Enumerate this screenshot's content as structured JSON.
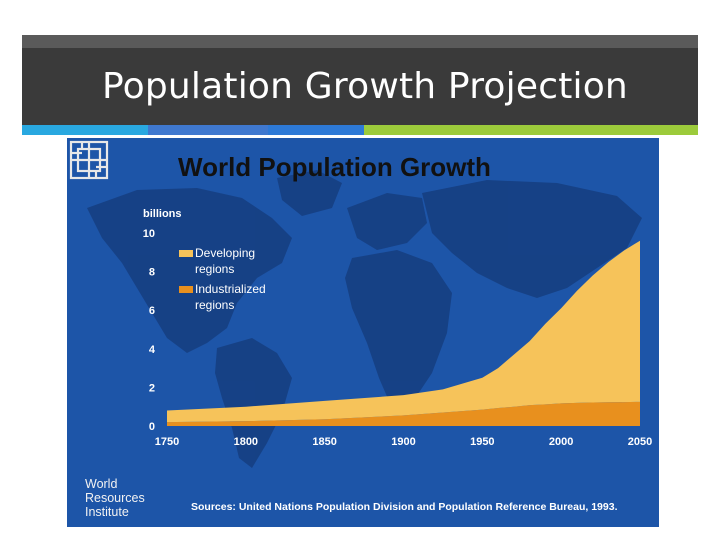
{
  "slide": {
    "title": "Population Growth Projection",
    "accent_colors": [
      "#29a8e0",
      "#3f78cf",
      "#2d79d6",
      "#9ccb3b"
    ]
  },
  "chart_data": {
    "type": "area",
    "title": "World Population Growth",
    "ylabel": "billions",
    "xlabel": "",
    "ylim": [
      0,
      10
    ],
    "yticks": [
      0,
      2,
      4,
      6,
      8,
      10
    ],
    "xlim": [
      1750,
      2050
    ],
    "xticks": [
      1750,
      1800,
      1850,
      1900,
      1950,
      2000,
      2050
    ],
    "stacked": true,
    "legend_position": "top-left",
    "x": [
      1750,
      1800,
      1850,
      1900,
      1925,
      1950,
      1960,
      1970,
      1980,
      1990,
      2000,
      2010,
      2020,
      2030,
      2040,
      2050
    ],
    "series": [
      {
        "name": "Industrialized regions",
        "color": "#e8901e",
        "values": [
          0.2,
          0.25,
          0.35,
          0.55,
          0.7,
          0.85,
          0.93,
          1.0,
          1.08,
          1.12,
          1.17,
          1.2,
          1.22,
          1.23,
          1.24,
          1.25
        ]
      },
      {
        "name": "Developing regions",
        "color": "#f6c35a",
        "values": [
          0.6,
          0.75,
          0.95,
          1.05,
          1.2,
          1.65,
          2.07,
          2.7,
          3.32,
          4.18,
          4.93,
          5.8,
          6.58,
          7.27,
          7.86,
          8.35
        ]
      }
    ],
    "legend": [
      "Developing regions",
      "Industrialized regions"
    ],
    "source": "Sources: United Nations Population Division and Population Reference Bureau, 1993."
  },
  "organization": {
    "name_lines": [
      "World",
      "Resources",
      "Institute"
    ]
  },
  "colors": {
    "header_bg": "#3a3a3a",
    "figure_bg": "#1d55a8",
    "landmass": "#163f82"
  }
}
